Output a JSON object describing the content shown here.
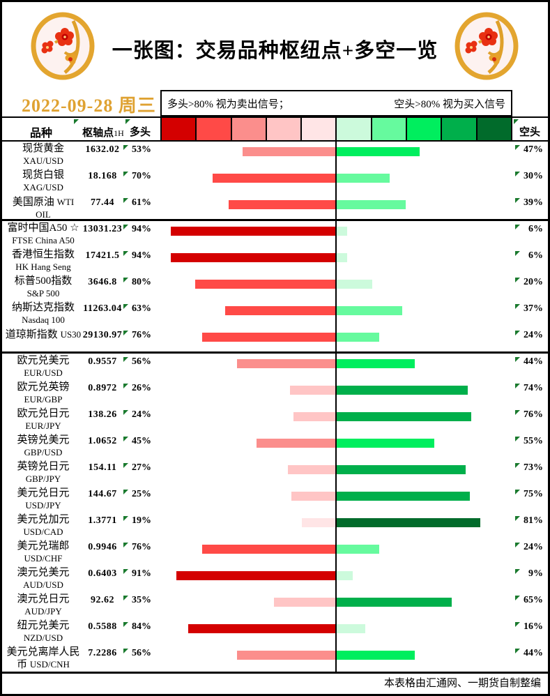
{
  "ui": {
    "title": "一张图：交易品种枢纽点+多空一览",
    "date": "2022-09-28 周三",
    "legend": {
      "long_rule": "多头>80% 视为卖出信号；",
      "short_rule": "空头>80% 视为买入信号"
    },
    "columns": {
      "instrument": "品种",
      "pivot": "枢轴点",
      "pivot_timeframe": "1H",
      "long": "多头",
      "short": "空头"
    },
    "footer": "本表格由汇通网、一期货自制整编",
    "colors": {
      "date_gold": "#dfa232",
      "flag_green": "#1a7a2e",
      "divider": "#000000",
      "coin_gold": "#e3a52f",
      "coin_flower_red": "#e83012"
    }
  },
  "chart_data": {
    "type": "bar",
    "orientation": "horizontal-diverging",
    "axis_max_pct": 100,
    "center_split": "多头 bars extend left (red), 空头 bars extend right (green)",
    "bin_thresholds_pct": [
      80,
      60,
      40,
      20,
      0
    ],
    "bins_long_red_dark_to_light": [
      "#d40000",
      "#ff4a47",
      "#fb8e8c",
      "#ffc5c5",
      "#ffe5e6"
    ],
    "bins_short_green_light_to_dark": [
      "#ccfadc",
      "#66fa9e",
      "#00ee5e",
      "#00af4b",
      "#016b2b"
    ],
    "series": [
      {
        "name": "多头",
        "values": [
          53,
          70,
          61,
          94,
          94,
          80,
          63,
          76,
          56,
          26,
          24,
          45,
          27,
          25,
          19,
          76,
          91,
          35,
          84,
          56
        ]
      },
      {
        "name": "空头",
        "values": [
          47,
          30,
          39,
          6,
          6,
          20,
          37,
          24,
          44,
          74,
          76,
          55,
          73,
          75,
          81,
          24,
          9,
          65,
          16,
          44
        ]
      }
    ],
    "rows": [
      {
        "cn": "现货黄金",
        "en": "XAU/USD",
        "pivot": "1632.02",
        "long": 53,
        "short": 47,
        "section": 1
      },
      {
        "cn": "现货白银",
        "en": "XAG/USD",
        "pivot": "18.168",
        "long": 70,
        "short": 30,
        "section": 1
      },
      {
        "cn": "美国原油",
        "en": "WTI OIL",
        "pivot": "77.44",
        "long": 61,
        "short": 39,
        "section": 1
      },
      {
        "cn": "富时中国A50 ☆",
        "en": "FTSE China A50",
        "pivot": "13031.23",
        "long": 94,
        "short": 6,
        "section": 2
      },
      {
        "cn": "香港恒生指数",
        "en": "HK Hang Seng",
        "pivot": "17421.5",
        "long": 94,
        "short": 6,
        "section": 2
      },
      {
        "cn": "标普500指数",
        "en": "S&P 500",
        "pivot": "3646.8",
        "long": 80,
        "short": 20,
        "section": 2
      },
      {
        "cn": "纳斯达克指数",
        "en": "Nasdaq 100",
        "pivot": "11263.04",
        "long": 63,
        "short": 37,
        "section": 2
      },
      {
        "cn": "道琼斯指数",
        "en": "US30",
        "pivot": "29130.97",
        "long": 76,
        "short": 24,
        "section": 2
      },
      {
        "cn": "欧元兑美元",
        "en": "EUR/USD",
        "pivot": "0.9557",
        "long": 56,
        "short": 44,
        "section": 3
      },
      {
        "cn": "欧元兑英镑",
        "en": "EUR/GBP",
        "pivot": "0.8972",
        "long": 26,
        "short": 74,
        "section": 3
      },
      {
        "cn": "欧元兑日元",
        "en": "EUR/JPY",
        "pivot": "138.26",
        "long": 24,
        "short": 76,
        "section": 3
      },
      {
        "cn": "英镑兑美元",
        "en": "GBP/USD",
        "pivot": "1.0652",
        "long": 45,
        "short": 55,
        "section": 3
      },
      {
        "cn": "英镑兑日元",
        "en": "GBP/JPY",
        "pivot": "154.11",
        "long": 27,
        "short": 73,
        "section": 3
      },
      {
        "cn": "美元兑日元",
        "en": "USD/JPY",
        "pivot": "144.67",
        "long": 25,
        "short": 75,
        "section": 3
      },
      {
        "cn": "美元兑加元",
        "en": "USD/CAD",
        "pivot": "1.3771",
        "long": 19,
        "short": 81,
        "section": 3
      },
      {
        "cn": "美元兑瑞郎",
        "en": "USD/CHF",
        "pivot": "0.9946",
        "long": 76,
        "short": 24,
        "section": 3
      },
      {
        "cn": "澳元兑美元",
        "en": "AUD/USD",
        "pivot": "0.6403",
        "long": 91,
        "short": 9,
        "section": 3
      },
      {
        "cn": "澳元兑日元",
        "en": "AUD/JPY",
        "pivot": "92.62",
        "long": 35,
        "short": 65,
        "section": 3
      },
      {
        "cn": "纽元兑美元",
        "en": "NZD/USD",
        "pivot": "0.5588",
        "long": 84,
        "short": 16,
        "section": 3
      },
      {
        "cn": "美元兑离岸人民币",
        "en": "USD/CNH",
        "pivot": "7.2286",
        "long": 56,
        "short": 44,
        "section": 3
      }
    ]
  }
}
